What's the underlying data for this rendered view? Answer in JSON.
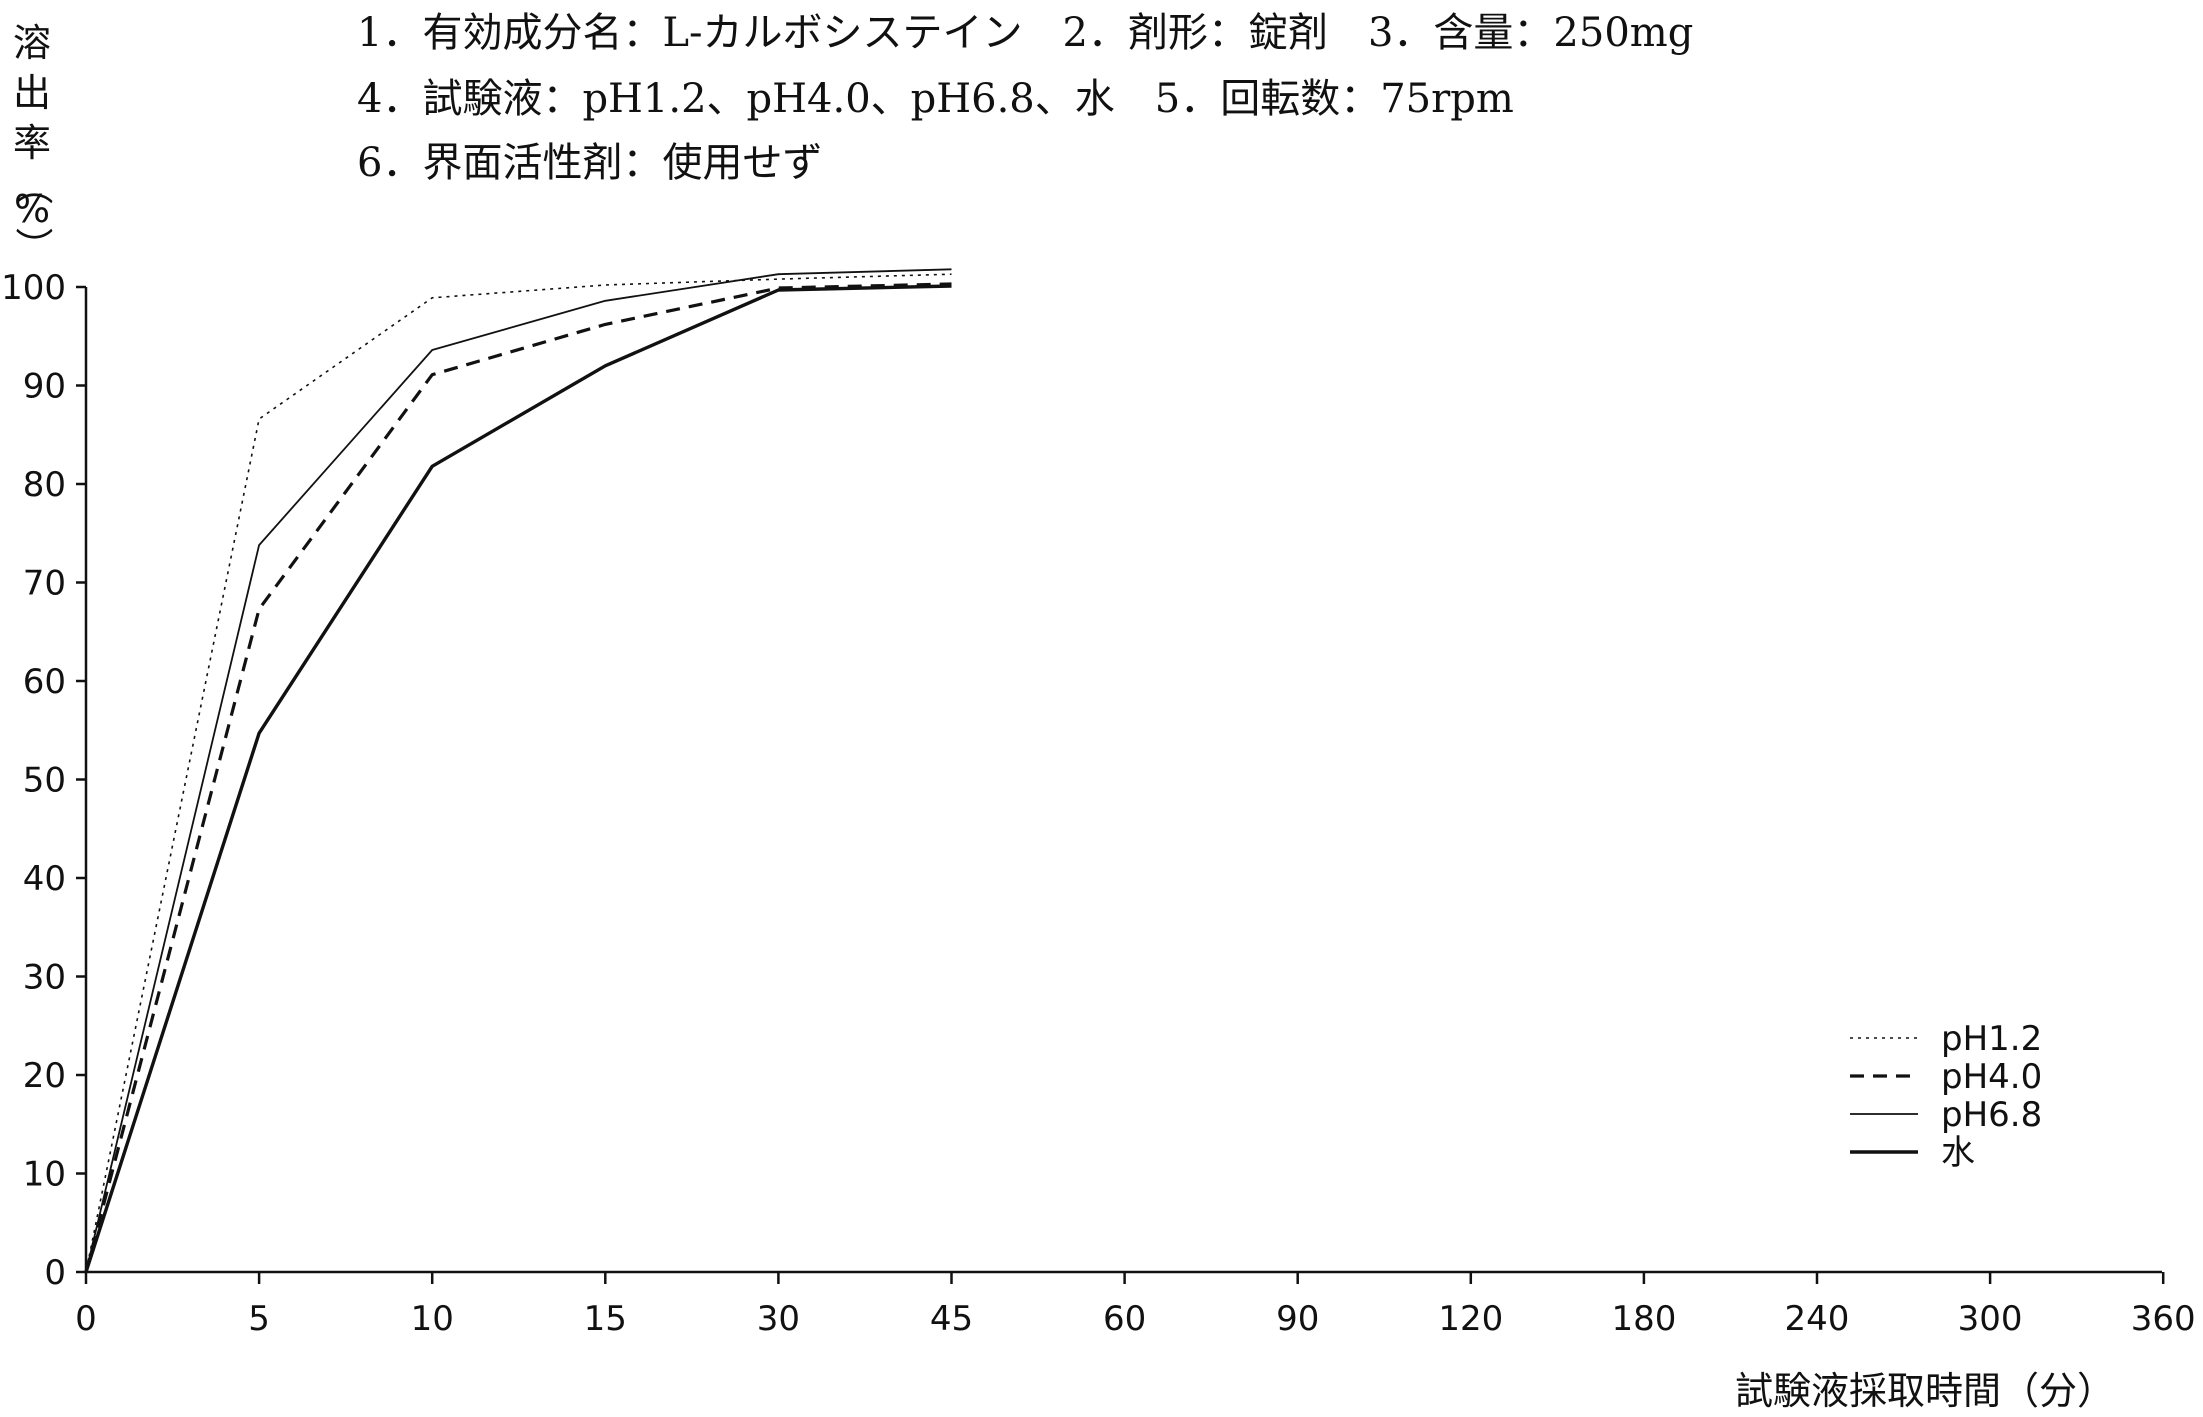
{
  "info_lines": [
    "1．有効成分名：L-カルボシステイン　2．剤形：錠剤　3．含量：250mg",
    "4．試験液：pH1.2、pH4.0、pH6.8、水　5．回転数：75rpm",
    "6．界面活性剤：使用せず"
  ],
  "chart_data": {
    "type": "line",
    "title": "",
    "xlabel": "試験液採取時間（分）",
    "ylabel": "溶出率（%）",
    "ylabel_chars": [
      "溶",
      "出",
      "率",
      "（",
      "%",
      "）"
    ],
    "categories": [
      "0",
      "5",
      "10",
      "15",
      "30",
      "45",
      "60",
      "90",
      "120",
      "180",
      "240",
      "300",
      "360"
    ],
    "x": [
      0,
      5,
      10,
      15,
      30,
      45,
      60,
      90,
      120,
      180,
      240,
      300,
      360
    ],
    "ylim": [
      0,
      100
    ],
    "yticks": [
      0,
      10,
      20,
      30,
      40,
      50,
      60,
      70,
      80,
      90,
      100
    ],
    "x_axis_scale": "categorical (equally spaced sampling times)",
    "grid": false,
    "legend_position": "bottom-right",
    "series": [
      {
        "name": "pH1.2",
        "style": "dotted",
        "color": "#111111",
        "x": [
          0,
          5,
          10,
          15,
          30,
          45
        ],
        "values": [
          0,
          86.6,
          98.9,
          100.2,
          100.8,
          101.3
        ]
      },
      {
        "name": "pH4.0",
        "style": "dashed",
        "color": "#111111",
        "x": [
          0,
          5,
          10,
          15,
          30,
          45
        ],
        "values": [
          0,
          67.3,
          91.1,
          96.2,
          99.9,
          100.3
        ]
      },
      {
        "name": "pH6.8",
        "style": "thin-solid",
        "color": "#111111",
        "x": [
          0,
          5,
          10,
          15,
          30,
          45
        ],
        "values": [
          0,
          73.8,
          93.6,
          98.6,
          101.3,
          101.8
        ]
      },
      {
        "name": "水",
        "style": "thick-solid",
        "color": "#111111",
        "x": [
          0,
          5,
          10,
          15,
          30,
          45
        ],
        "values": [
          0,
          54.7,
          81.8,
          92.0,
          99.7,
          100.1
        ]
      }
    ]
  }
}
